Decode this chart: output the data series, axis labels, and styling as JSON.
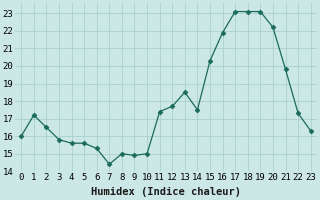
{
  "x": [
    0,
    1,
    2,
    3,
    4,
    5,
    6,
    7,
    8,
    9,
    10,
    11,
    12,
    13,
    14,
    15,
    16,
    17,
    18,
    19,
    20,
    21,
    22,
    23
  ],
  "y": [
    16.0,
    17.2,
    16.5,
    15.8,
    15.6,
    15.6,
    15.3,
    14.4,
    15.0,
    14.9,
    15.0,
    17.4,
    17.7,
    18.5,
    17.5,
    20.3,
    21.9,
    23.1,
    23.1,
    23.1,
    22.2,
    19.8,
    17.3,
    16.3
  ],
  "line_color": "#1a6b5a",
  "marker": "D",
  "marker_size": 2.5,
  "bg_color": "#cce8e6",
  "grid_color": "#aacfcc",
  "xlabel": "Humidex (Indice chaleur)",
  "xlim": [
    -0.5,
    23.5
  ],
  "ylim": [
    14,
    23.6
  ],
  "xticks": [
    0,
    1,
    2,
    3,
    4,
    5,
    6,
    7,
    8,
    9,
    10,
    11,
    12,
    13,
    14,
    15,
    16,
    17,
    18,
    19,
    20,
    21,
    22,
    23
  ],
  "yticks": [
    14,
    15,
    16,
    17,
    18,
    19,
    20,
    21,
    22,
    23
  ],
  "tick_fontsize": 6.5,
  "label_fontsize": 7.5
}
